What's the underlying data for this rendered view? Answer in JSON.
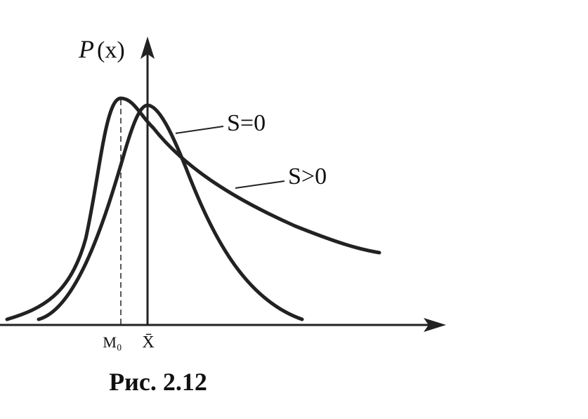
{
  "axis_label": {
    "symbol": "P",
    "argument": "(x)"
  },
  "curves": [
    {
      "label": "S=0"
    },
    {
      "label": "S>0"
    }
  ],
  "x_marks": [
    "M₀",
    "X̄"
  ],
  "caption": "Рис. 2.12"
}
